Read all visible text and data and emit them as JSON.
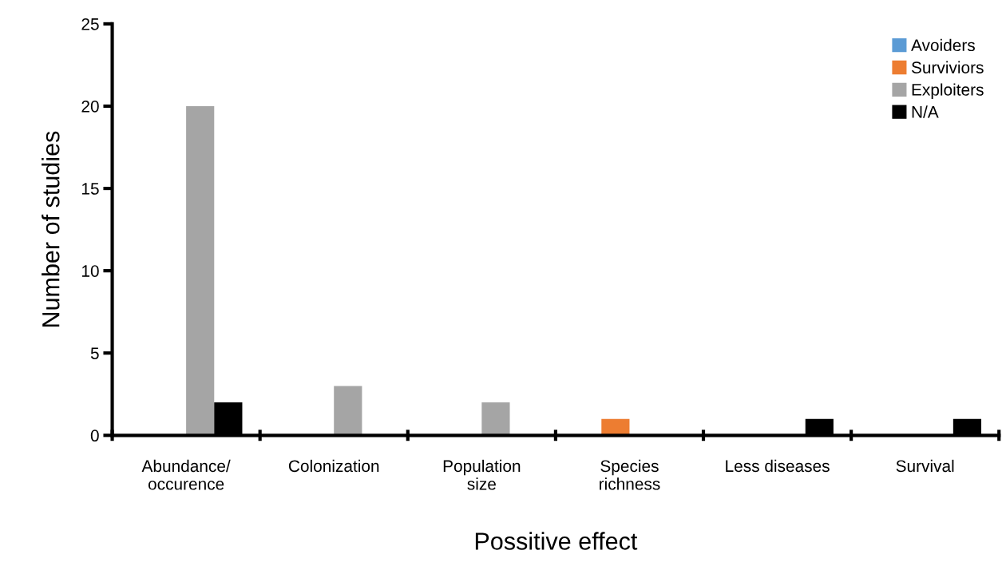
{
  "chart_data": {
    "type": "bar",
    "xlabel": "Possitive effect",
    "ylabel": "Number of studies",
    "categories": [
      "Abundance/\noccurence",
      "Colonization",
      "Population\nsize",
      "Species\nrichness",
      "Less diseases",
      "Survival"
    ],
    "series": [
      {
        "name": "Avoiders",
        "color": "#5b9bd5",
        "values": [
          0,
          0,
          0,
          0,
          0,
          0
        ]
      },
      {
        "name": "Surviviors",
        "color": "#ed7d31",
        "values": [
          0,
          0,
          0,
          1,
          0,
          0
        ]
      },
      {
        "name": "Exploiters",
        "color": "#a5a5a5",
        "values": [
          20,
          3,
          2,
          0,
          0,
          0
        ]
      },
      {
        "name": "N/A",
        "color": "#000000",
        "values": [
          2,
          0,
          0,
          0,
          1,
          1
        ]
      }
    ],
    "ylim": [
      0,
      25
    ],
    "yticks": [
      0,
      5,
      10,
      15,
      20,
      25
    ],
    "grid": false,
    "legend": "top right"
  }
}
